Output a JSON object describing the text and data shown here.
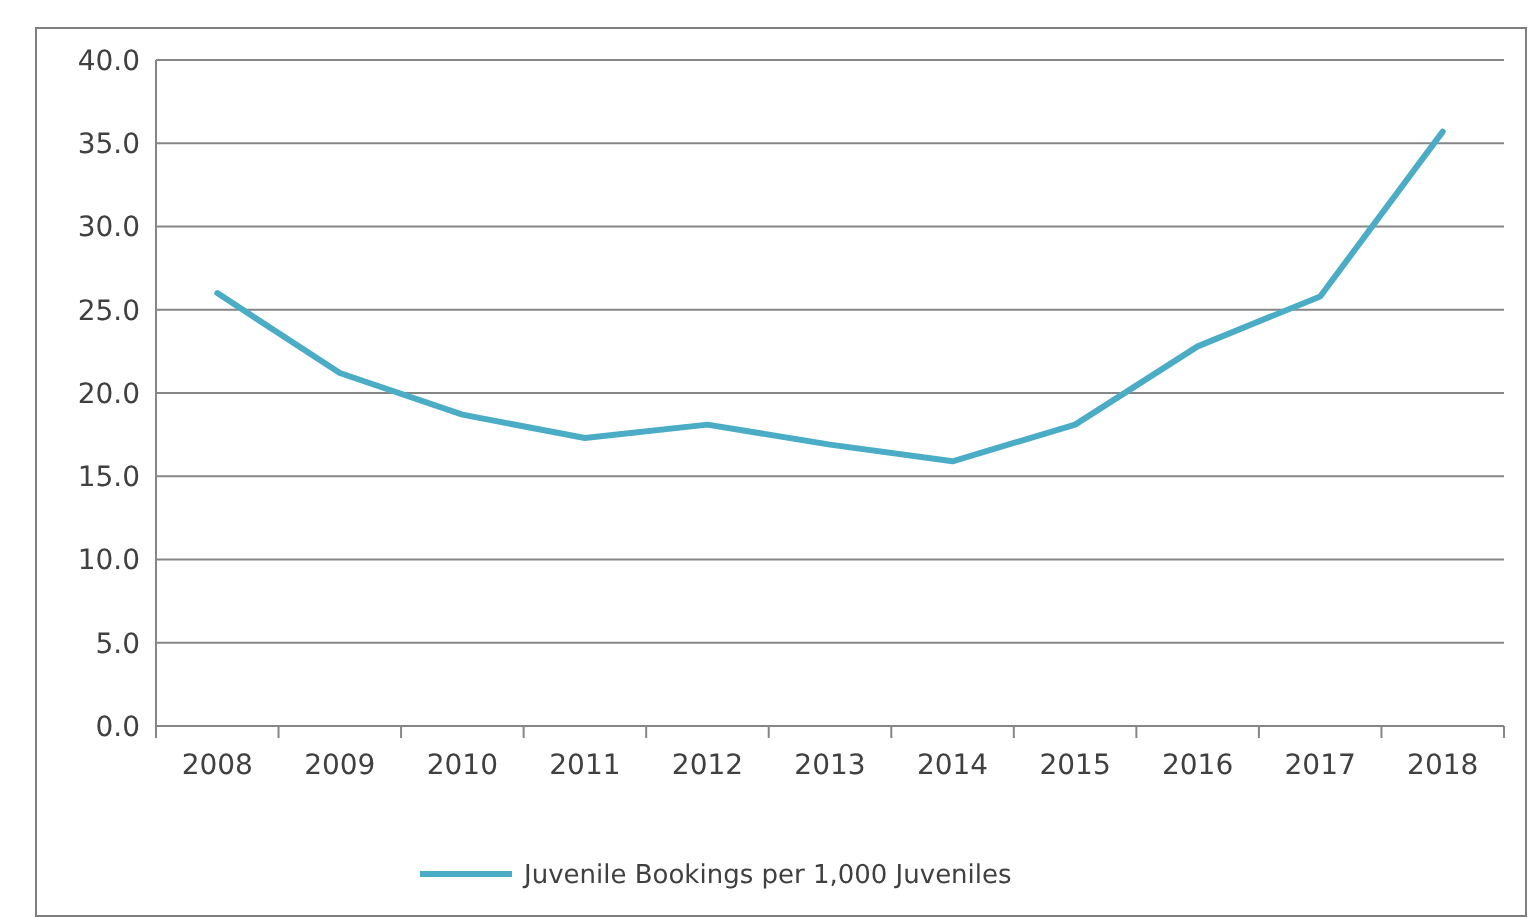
{
  "chart_data": {
    "type": "line",
    "categories": [
      "2008",
      "2009",
      "2010",
      "2011",
      "2012",
      "2013",
      "2014",
      "2015",
      "2016",
      "2017",
      "2018"
    ],
    "series": [
      {
        "name": "Juvenile Bookings per 1,000 Juveniles",
        "color": "#4bacc6",
        "values": [
          26.0,
          21.2,
          18.7,
          17.3,
          18.1,
          16.9,
          15.9,
          18.1,
          22.8,
          25.8,
          35.7
        ]
      }
    ],
    "ylim": [
      0,
      40
    ],
    "yticks": [
      {
        "value": 0,
        "label": "0.0"
      },
      {
        "value": 5,
        "label": "5.0"
      },
      {
        "value": 10,
        "label": "10.0"
      },
      {
        "value": 15,
        "label": "15.0"
      },
      {
        "value": 20,
        "label": "20.0"
      },
      {
        "value": 25,
        "label": "25.0"
      },
      {
        "value": 30,
        "label": "30.0"
      },
      {
        "value": 35,
        "label": "35.0"
      },
      {
        "value": 40,
        "label": "40.0"
      }
    ],
    "grid": "y",
    "legend": "bottom",
    "marker": "none",
    "line_style": "solid"
  }
}
